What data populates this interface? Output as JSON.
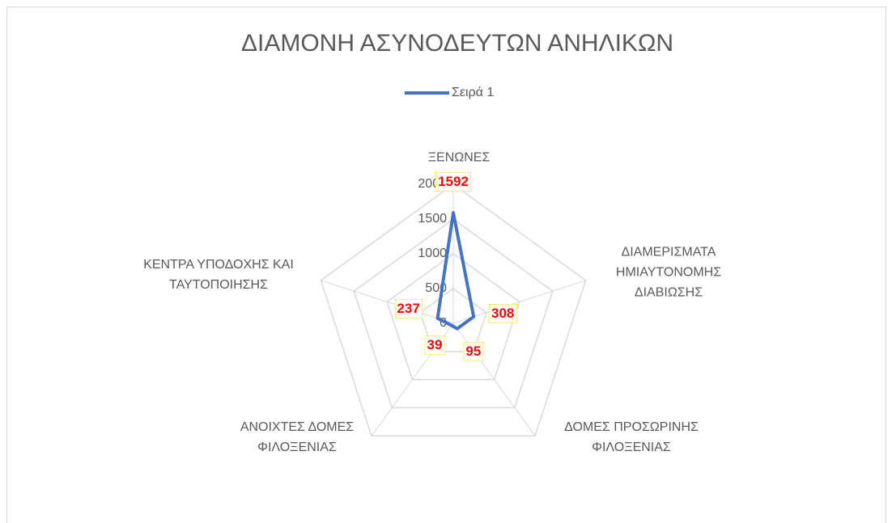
{
  "chart_data": {
    "type": "radar",
    "title": "ΔΙΑΜΟΝΗ ΑΣΥΝΟΔΕΥΤΩΝ ΑΝΗΛΙΚΩΝ",
    "categories": [
      "ΞΕΝΩΝΕΣ",
      "ΔΙΑΜΕΡΙΣΜΑΤΑ ΗΜΙΑΥΤΟΝΟΜΗΣ ΔΙΑΒΙΩΣΗΣ",
      "ΔΟΜΕΣ ΠΡΟΣΩΡΙΝΗΣ ΦΙΛΟΞΕΝΙΑΣ",
      "ΑΝΟΙΧΤΕΣ ΔΟΜΕΣ ΦΙΛΟΞΕΝΙΑΣ",
      "ΚΕΝΤΡΑ ΥΠΟΔΟΧΗΣ ΚΑΙ ΤΑΥΤΟΠΟΙΗΣΗΣ"
    ],
    "series": [
      {
        "name": "Σειρά 1",
        "color": "#4472c4",
        "values": [
          1592,
          308,
          95,
          39,
          237
        ]
      }
    ],
    "ylim": [
      0,
      2000
    ],
    "yticks": [
      0,
      500,
      1000,
      1500,
      2000
    ],
    "grid": true,
    "legend": "top"
  }
}
